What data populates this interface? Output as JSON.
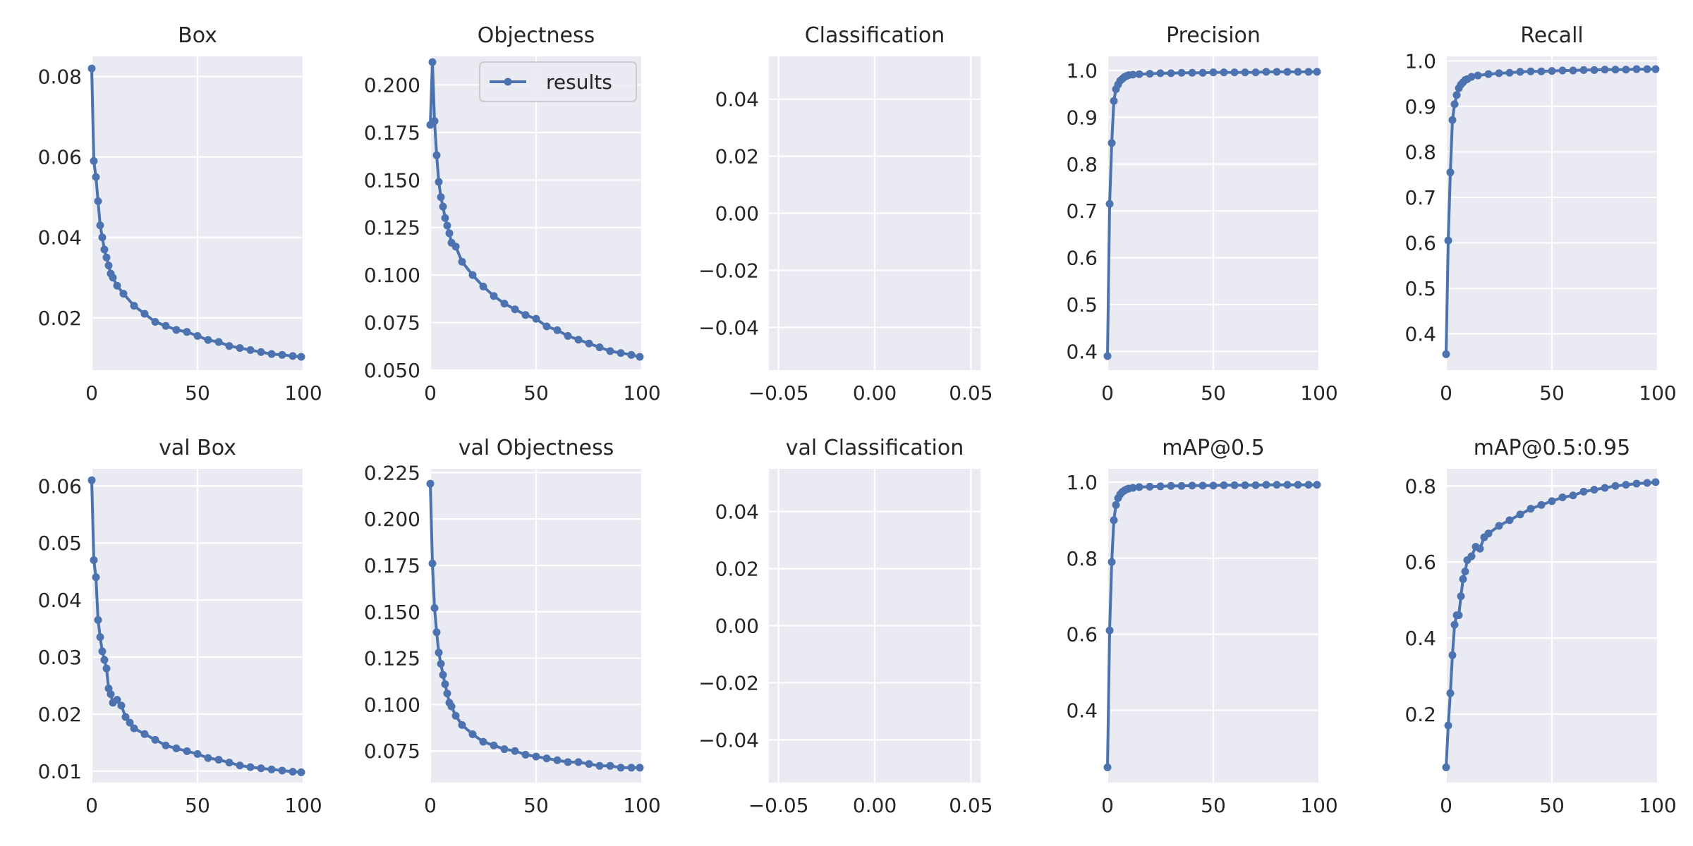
{
  "figure": {
    "background": "#ffffff",
    "plot_background": "#eaeaf2",
    "line_color": "#4c72b0"
  },
  "legend": {
    "label": "results",
    "placement": "upper-right of Objectness panel"
  },
  "chart_data": [
    {
      "type": "line",
      "title": "Box",
      "xlim": [
        0,
        100
      ],
      "ylim": [
        0.007,
        0.085
      ],
      "xticks": [
        0,
        50,
        100
      ],
      "xtick_labels": [
        "0",
        "50",
        "100"
      ],
      "yticks": [
        0.02,
        0.04,
        0.06,
        0.08
      ],
      "ytick_labels": [
        "0.02",
        "0.04",
        "0.06",
        "0.08"
      ],
      "grid": true,
      "markers": true,
      "series": [
        {
          "name": "results",
          "x": [
            0,
            1,
            2,
            3,
            4,
            5,
            6,
            7,
            8,
            9,
            10,
            12,
            15,
            20,
            25,
            30,
            35,
            40,
            45,
            50,
            55,
            60,
            65,
            70,
            75,
            80,
            85,
            90,
            95,
            99
          ],
          "y": [
            0.082,
            0.059,
            0.055,
            0.049,
            0.043,
            0.04,
            0.037,
            0.035,
            0.033,
            0.031,
            0.03,
            0.028,
            0.026,
            0.023,
            0.021,
            0.019,
            0.018,
            0.017,
            0.0165,
            0.0155,
            0.0145,
            0.014,
            0.013,
            0.0125,
            0.012,
            0.0115,
            0.011,
            0.0108,
            0.0105,
            0.0103
          ]
        }
      ]
    },
    {
      "type": "line",
      "title": "Objectness",
      "xlim": [
        0,
        100
      ],
      "ylim": [
        0.05,
        0.215
      ],
      "xticks": [
        0,
        50,
        100
      ],
      "xtick_labels": [
        "0",
        "50",
        "100"
      ],
      "yticks": [
        0.05,
        0.075,
        0.1,
        0.125,
        0.15,
        0.175,
        0.2
      ],
      "ytick_labels": [
        "0.050",
        "0.075",
        "0.100",
        "0.125",
        "0.150",
        "0.175",
        "0.200"
      ],
      "grid": true,
      "markers": true,
      "legend": true,
      "series": [
        {
          "name": "results",
          "x": [
            0,
            1,
            2,
            3,
            4,
            5,
            6,
            7,
            8,
            9,
            10,
            12,
            15,
            20,
            25,
            30,
            35,
            40,
            45,
            50,
            55,
            60,
            65,
            70,
            75,
            80,
            85,
            90,
            95,
            99
          ],
          "y": [
            0.179,
            0.212,
            0.181,
            0.163,
            0.149,
            0.141,
            0.136,
            0.13,
            0.126,
            0.122,
            0.117,
            0.115,
            0.107,
            0.1,
            0.094,
            0.089,
            0.085,
            0.082,
            0.079,
            0.077,
            0.073,
            0.071,
            0.068,
            0.066,
            0.064,
            0.062,
            0.06,
            0.059,
            0.058,
            0.057
          ]
        }
      ]
    },
    {
      "type": "line",
      "title": "Classification",
      "xlim": [
        -0.055,
        0.055
      ],
      "ylim": [
        -0.055,
        0.055
      ],
      "xticks": [
        -0.05,
        0.0,
        0.05
      ],
      "xtick_labels": [
        "−0.05",
        "0.00",
        "0.05"
      ],
      "yticks": [
        -0.04,
        -0.02,
        0.0,
        0.02,
        0.04
      ],
      "ytick_labels": [
        "−0.04",
        "−0.02",
        "0.00",
        "0.02",
        "0.04"
      ],
      "grid": true,
      "series": []
    },
    {
      "type": "line",
      "title": "Precision",
      "xlim": [
        0,
        100
      ],
      "ylim": [
        0.36,
        1.03
      ],
      "xticks": [
        0,
        50,
        100
      ],
      "xtick_labels": [
        "0",
        "50",
        "100"
      ],
      "yticks": [
        0.4,
        0.5,
        0.6,
        0.7,
        0.8,
        0.9,
        1.0
      ],
      "ytick_labels": [
        "0.4",
        "0.5",
        "0.6",
        "0.7",
        "0.8",
        "0.9",
        "1.0"
      ],
      "grid": true,
      "markers": true,
      "series": [
        {
          "name": "results",
          "x": [
            0,
            1,
            2,
            3,
            4,
            5,
            6,
            7,
            8,
            9,
            10,
            12,
            15,
            20,
            25,
            30,
            35,
            40,
            45,
            50,
            55,
            60,
            65,
            70,
            75,
            80,
            85,
            90,
            95,
            99
          ],
          "y": [
            0.39,
            0.715,
            0.845,
            0.935,
            0.96,
            0.97,
            0.978,
            0.982,
            0.986,
            0.988,
            0.99,
            0.991,
            0.992,
            0.993,
            0.994,
            0.994,
            0.995,
            0.995,
            0.995,
            0.996,
            0.996,
            0.996,
            0.996,
            0.996,
            0.997,
            0.997,
            0.997,
            0.997,
            0.997,
            0.997
          ]
        }
      ]
    },
    {
      "type": "line",
      "title": "Recall",
      "xlim": [
        0,
        100
      ],
      "ylim": [
        0.32,
        1.01
      ],
      "xticks": [
        0,
        50,
        100
      ],
      "xtick_labels": [
        "0",
        "50",
        "100"
      ],
      "yticks": [
        0.4,
        0.5,
        0.6,
        0.7,
        0.8,
        0.9,
        1.0
      ],
      "ytick_labels": [
        "0.4",
        "0.5",
        "0.6",
        "0.7",
        "0.8",
        "0.9",
        "1.0"
      ],
      "grid": true,
      "markers": true,
      "series": [
        {
          "name": "results",
          "x": [
            0,
            1,
            2,
            3,
            4,
            5,
            6,
            7,
            8,
            9,
            10,
            12,
            15,
            20,
            25,
            30,
            35,
            40,
            45,
            50,
            55,
            60,
            65,
            70,
            75,
            80,
            85,
            90,
            95,
            99
          ],
          "y": [
            0.355,
            0.605,
            0.755,
            0.87,
            0.905,
            0.925,
            0.94,
            0.948,
            0.953,
            0.958,
            0.96,
            0.965,
            0.968,
            0.971,
            0.973,
            0.974,
            0.976,
            0.977,
            0.977,
            0.978,
            0.979,
            0.979,
            0.98,
            0.98,
            0.981,
            0.981,
            0.981,
            0.982,
            0.982,
            0.982
          ]
        }
      ]
    },
    {
      "type": "line",
      "title": "val Box",
      "xlim": [
        0,
        100
      ],
      "ylim": [
        0.008,
        0.063
      ],
      "xticks": [
        0,
        50,
        100
      ],
      "xtick_labels": [
        "0",
        "50",
        "100"
      ],
      "yticks": [
        0.01,
        0.02,
        0.03,
        0.04,
        0.05,
        0.06
      ],
      "ytick_labels": [
        "0.01",
        "0.02",
        "0.03",
        "0.04",
        "0.05",
        "0.06"
      ],
      "grid": true,
      "markers": true,
      "series": [
        {
          "name": "results",
          "x": [
            0,
            1,
            2,
            3,
            4,
            5,
            6,
            7,
            8,
            9,
            10,
            12,
            14,
            16,
            18,
            20,
            25,
            30,
            35,
            40,
            45,
            50,
            55,
            60,
            65,
            70,
            75,
            80,
            85,
            90,
            95,
            99
          ],
          "y": [
            0.061,
            0.047,
            0.044,
            0.0365,
            0.0335,
            0.031,
            0.0295,
            0.028,
            0.0245,
            0.0235,
            0.022,
            0.0225,
            0.0215,
            0.0195,
            0.0185,
            0.0175,
            0.0165,
            0.0155,
            0.0145,
            0.014,
            0.0135,
            0.013,
            0.0123,
            0.012,
            0.0115,
            0.011,
            0.0107,
            0.0105,
            0.0103,
            0.0101,
            0.0099,
            0.0098
          ]
        }
      ]
    },
    {
      "type": "line",
      "title": "val Objectness",
      "xlim": [
        0,
        100
      ],
      "ylim": [
        0.058,
        0.227
      ],
      "xticks": [
        0,
        50,
        100
      ],
      "xtick_labels": [
        "0",
        "50",
        "100"
      ],
      "yticks": [
        0.075,
        0.1,
        0.125,
        0.15,
        0.175,
        0.2,
        0.225
      ],
      "ytick_labels": [
        "0.075",
        "0.100",
        "0.125",
        "0.150",
        "0.175",
        "0.200",
        "0.225"
      ],
      "grid": true,
      "markers": true,
      "series": [
        {
          "name": "results",
          "x": [
            0,
            1,
            2,
            3,
            4,
            5,
            6,
            7,
            8,
            9,
            10,
            12,
            15,
            20,
            25,
            30,
            35,
            40,
            45,
            50,
            55,
            60,
            65,
            70,
            75,
            80,
            85,
            90,
            95,
            99
          ],
          "y": [
            0.219,
            0.176,
            0.152,
            0.139,
            0.128,
            0.122,
            0.116,
            0.111,
            0.106,
            0.101,
            0.099,
            0.094,
            0.089,
            0.084,
            0.08,
            0.078,
            0.076,
            0.075,
            0.073,
            0.072,
            0.071,
            0.07,
            0.069,
            0.069,
            0.068,
            0.067,
            0.067,
            0.066,
            0.066,
            0.066
          ]
        }
      ]
    },
    {
      "type": "line",
      "title": "val Classification",
      "xlim": [
        -0.055,
        0.055
      ],
      "ylim": [
        -0.055,
        0.055
      ],
      "xticks": [
        -0.05,
        0.0,
        0.05
      ],
      "xtick_labels": [
        "−0.05",
        "0.00",
        "0.05"
      ],
      "yticks": [
        -0.04,
        -0.02,
        0.0,
        0.02,
        0.04
      ],
      "ytick_labels": [
        "−0.04",
        "−0.02",
        "0.00",
        "0.02",
        "0.04"
      ],
      "grid": true,
      "series": []
    },
    {
      "type": "line",
      "title": "mAP@0.5",
      "xlim": [
        0,
        100
      ],
      "ylim": [
        0.21,
        1.035
      ],
      "xticks": [
        0,
        50,
        100
      ],
      "xtick_labels": [
        "0",
        "50",
        "100"
      ],
      "yticks": [
        0.4,
        0.6,
        0.8,
        1.0
      ],
      "ytick_labels": [
        "0.4",
        "0.6",
        "0.8",
        "1.0"
      ],
      "grid": true,
      "markers": true,
      "series": [
        {
          "name": "results",
          "x": [
            0,
            1,
            2,
            3,
            4,
            5,
            6,
            7,
            8,
            9,
            10,
            12,
            15,
            20,
            25,
            30,
            35,
            40,
            45,
            50,
            55,
            60,
            65,
            70,
            75,
            80,
            85,
            90,
            95,
            99
          ],
          "y": [
            0.25,
            0.61,
            0.79,
            0.9,
            0.94,
            0.958,
            0.968,
            0.974,
            0.978,
            0.981,
            0.983,
            0.985,
            0.987,
            0.988,
            0.989,
            0.99,
            0.99,
            0.991,
            0.991,
            0.991,
            0.992,
            0.992,
            0.992,
            0.992,
            0.993,
            0.993,
            0.993,
            0.993,
            0.993,
            0.993
          ]
        }
      ]
    },
    {
      "type": "line",
      "title": "mAP@0.5:0.95",
      "xlim": [
        0,
        100
      ],
      "ylim": [
        0.02,
        0.845
      ],
      "xticks": [
        0,
        50,
        100
      ],
      "xtick_labels": [
        "0",
        "50",
        "100"
      ],
      "yticks": [
        0.2,
        0.4,
        0.6,
        0.8
      ],
      "ytick_labels": [
        "0.2",
        "0.4",
        "0.6",
        "0.8"
      ],
      "grid": true,
      "markers": true,
      "series": [
        {
          "name": "results",
          "x": [
            0,
            1,
            2,
            3,
            4,
            5,
            6,
            7,
            8,
            9,
            10,
            12,
            14,
            16,
            18,
            20,
            25,
            30,
            35,
            40,
            45,
            50,
            55,
            60,
            65,
            70,
            75,
            80,
            85,
            90,
            95,
            99
          ],
          "y": [
            0.06,
            0.17,
            0.255,
            0.355,
            0.435,
            0.46,
            0.46,
            0.51,
            0.555,
            0.575,
            0.605,
            0.615,
            0.64,
            0.635,
            0.665,
            0.675,
            0.695,
            0.71,
            0.725,
            0.74,
            0.75,
            0.76,
            0.77,
            0.775,
            0.785,
            0.79,
            0.795,
            0.8,
            0.803,
            0.806,
            0.808,
            0.81
          ]
        }
      ]
    }
  ]
}
